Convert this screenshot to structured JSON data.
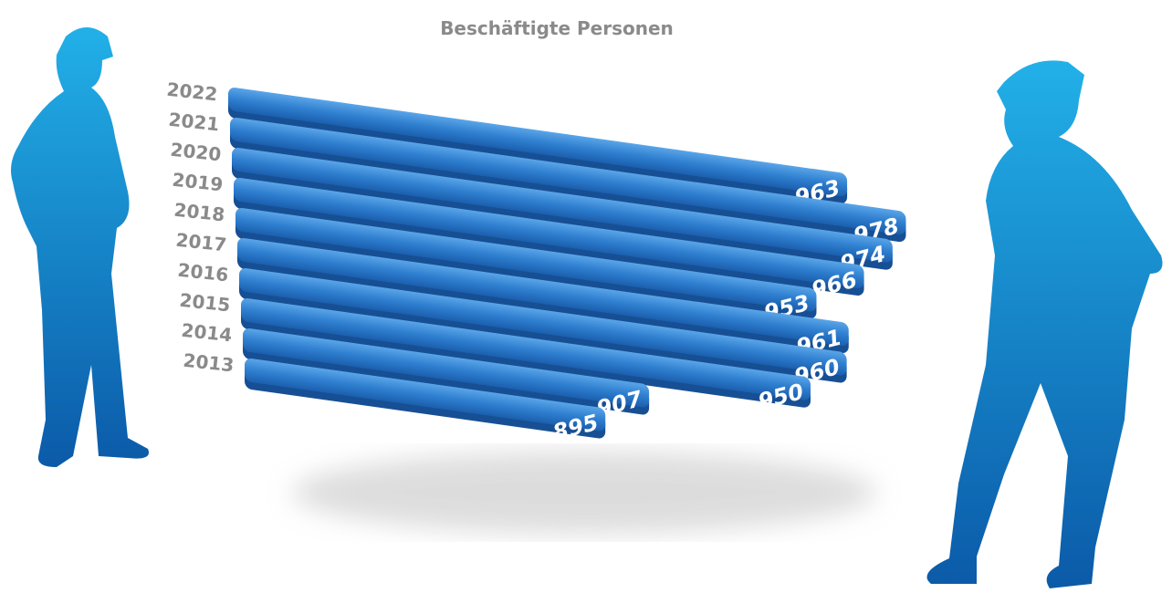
{
  "chart_data": {
    "type": "bar",
    "orientation": "horizontal",
    "subtitle": "Beschäftigte Personen",
    "categories": [
      "2022",
      "2021",
      "2020",
      "2019",
      "2018",
      "2017",
      "2016",
      "2015",
      "2014",
      "2013"
    ],
    "values": [
      963,
      978,
      974,
      966,
      953,
      961,
      960,
      950,
      907,
      895
    ],
    "color": "#2f7fd0",
    "xlim": [
      800,
      1000
    ]
  }
}
